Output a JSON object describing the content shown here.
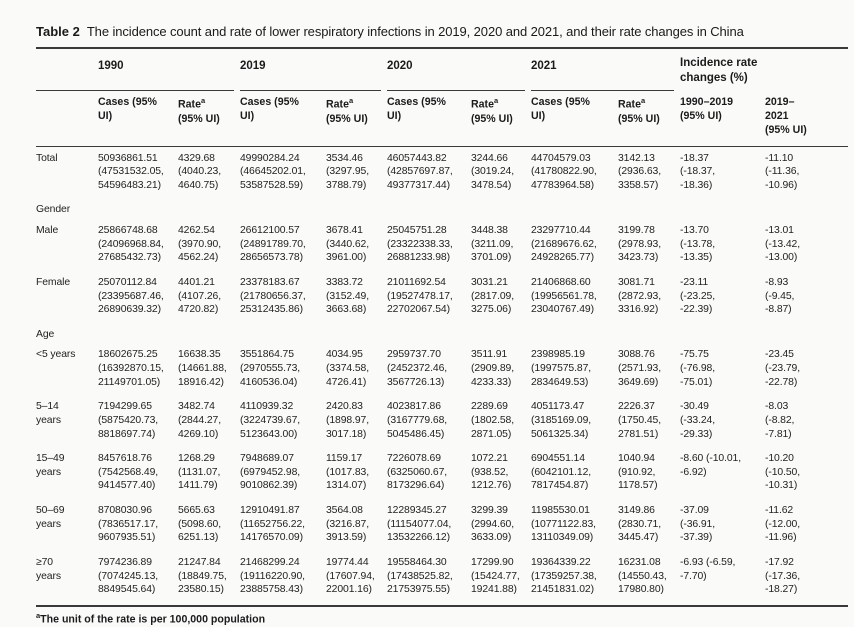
{
  "table": {
    "title": {
      "label": "Table 2",
      "caption": "The incidence count and rate of lower respiratory infections in 2019, 2020 and 2021, and their rate changes in China"
    },
    "header": {
      "year_groups": [
        "1990",
        "2019",
        "2020",
        "2021"
      ],
      "changes_label": "Incidence rate changes (%)",
      "cases_label": "Cases (95%\nUI)",
      "rate_label": "Rate",
      "rate_sup": "a",
      "rate_ui": "(95% UI)",
      "change_cols": [
        "1990–2019\n(95% UI)",
        "2019–\n2021\n(95% UI)"
      ]
    },
    "rows": [
      {
        "type": "data",
        "label": "Total",
        "cells": [
          "50936861.51\n(47531532.05,\n54596483.21)",
          "4329.68\n(4040.23,\n4640.75)",
          "49990284.24\n(46645202.01,\n53587528.59)",
          "3534.46\n(3297.95,\n3788.79)",
          "46057443.82\n(42857697.87,\n49377317.44)",
          "3244.66\n(3019.24,\n3478.54)",
          "44704579.03\n(41780822.90,\n47783964.58)",
          "3142.13\n(2936.63,\n3358.57)",
          "-18.37\n(-18.37,\n-18.36)",
          "-11.10\n(-11.36,\n-10.96)"
        ]
      },
      {
        "type": "section",
        "label": "Gender"
      },
      {
        "type": "data",
        "label": "Male",
        "cells": [
          "25866748.68\n(24096968.84,\n27685432.73)",
          "4262.54\n(3970.90,\n4562.24)",
          "26612100.57\n(24891789.70,\n28656573.78)",
          "3678.41\n(3440.62,\n3961.00)",
          "25045751.28\n(23322338.33,\n26881233.98)",
          "3448.38\n(3211.09,\n3701.09)",
          "23297710.44\n(21689676.62,\n24928265.77)",
          "3199.78\n(2978.93,\n3423.73)",
          "-13.70\n(-13.78,\n-13.35)",
          "-13.01\n(-13.42,\n-13.00)"
        ]
      },
      {
        "type": "data",
        "label": "Female",
        "cells": [
          "25070112.84\n(23395687.46,\n26890639.32)",
          "4401.21\n(4107.26,\n4720.82)",
          "23378183.67\n(21780656.37,\n25312435.86)",
          "3383.72\n(3152.49,\n3663.68)",
          "21011692.54\n(19527478.17,\n22702067.54)",
          "3031.21\n(2817.09,\n3275.06)",
          "21406868.60\n(19956561.78,\n23040767.49)",
          "3081.71\n(2872.93,\n3316.92)",
          "-23.11\n(-23.25,\n-22.39)",
          "-8.93\n(-9.45,\n-8.87)"
        ]
      },
      {
        "type": "section",
        "label": "Age"
      },
      {
        "type": "data",
        "label": "<5 years",
        "cells": [
          "18602675.25\n(16392870.15,\n21149701.05)",
          "16638.35\n(14661.88,\n18916.42)",
          "3551864.75\n(2970555.73,\n4160536.04)",
          "4034.95\n(3374.58,\n4726.41)",
          "2959737.70\n(2452372.46,\n3567726.13)",
          "3511.91\n(2909.89,\n4233.33)",
          "2398985.19\n(1997575.87,\n2834649.53)",
          "3088.76\n(2571.93,\n3649.69)",
          "-75.75\n(-76.98,\n-75.01)",
          "-23.45\n(-23.79,\n-22.78)"
        ]
      },
      {
        "type": "data",
        "label": "5–14\nyears",
        "cells": [
          "7194299.65\n(5875420.73,\n8818697.74)",
          "3482.74\n(2844.27,\n4269.10)",
          "4110939.32\n(3224739.67,\n5123643.00)",
          "2420.83\n(1898.97,\n3017.18)",
          "4023817.86\n(3167779.68,\n5045486.45)",
          "2289.69\n(1802.58,\n2871.05)",
          "4051173.47\n(3185169.09,\n5061325.34)",
          "2226.37\n(1750.45,\n2781.51)",
          "-30.49\n(-33.24,\n-29.33)",
          "-8.03\n(-8.82,\n-7.81)"
        ]
      },
      {
        "type": "data",
        "label": "15–49\nyears",
        "cells": [
          "8457618.76\n(7542568.49,\n9414577.40)",
          "1268.29\n(1131.07,\n1411.79)",
          "7948689.07\n(6979452.98,\n9010862.39)",
          "1159.17\n(1017.83,\n1314.07)",
          "7226078.69\n(6325060.67,\n8173296.64)",
          "1072.21\n(938.52,\n1212.76)",
          "6904551.14\n(6042101.12,\n7817454.87)",
          "1040.94\n(910.92,\n1178.57)",
          "-8.60 (-10.01,\n-6.92)",
          "-10.20\n(-10.50,\n-10.31)"
        ]
      },
      {
        "type": "data",
        "label": "50–69\nyears",
        "cells": [
          "8708030.96\n(7836517.17,\n9607935.51)",
          "5665.63\n(5098.60,\n6251.13)",
          "12910491.87\n(11652756.22,\n14176570.09)",
          "3564.08\n(3216.87,\n3913.59)",
          "12289345.27\n(11154077.04,\n13532266.12)",
          "3299.39\n(2994.60,\n3633.09)",
          "11985530.01\n(10771122.83,\n13110349.09)",
          "3149.86\n(2830.71,\n3445.47)",
          "-37.09\n(-36.91,\n-37.39)",
          "-11.62\n(-12.00,\n-11.96)"
        ]
      },
      {
        "type": "data",
        "label": "≥70\nyears",
        "cells": [
          "7974236.89\n(7074245.13,\n8849545.64)",
          "21247.84\n(18849.75,\n23580.15)",
          "21468299.24\n(19116220.90,\n23885758.43)",
          "19774.44\n(17607.94,\n22001.16)",
          "19558464.30\n(17438525.82,\n21753975.55)",
          "17299.90\n(15424.77,\n19241.88)",
          "19364339.22\n(17359257.38,\n21451831.02)",
          "16231.08\n(14550.43,\n17980.80)",
          "-6.93 (-6.59,\n-7.70)",
          "-17.92\n(-17.36,\n-18.27)"
        ]
      }
    ],
    "footnote": {
      "sup": "a",
      "text": "The unit of the rate is per 100,000 population"
    }
  }
}
